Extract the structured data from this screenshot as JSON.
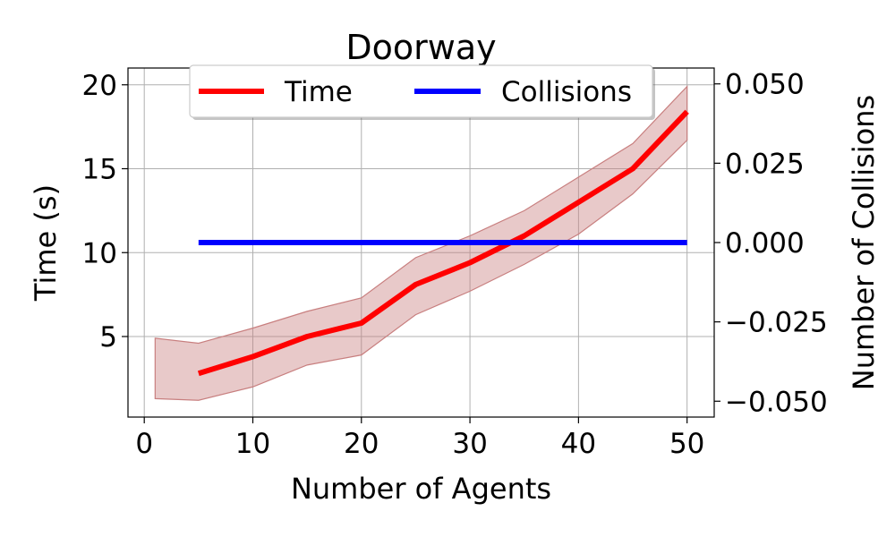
{
  "chart_data": {
    "type": "line",
    "title": "Doorway",
    "xlabel": "Number of Agents",
    "ylabel": "Time (s)",
    "y2label": "Number of Collisions",
    "xlim": [
      -1.5,
      52.5
    ],
    "ylim": [
      0.2,
      21.0
    ],
    "y2lim": [
      -0.055,
      0.055
    ],
    "xticks": [
      0,
      10,
      20,
      30,
      40,
      50
    ],
    "yticks": [
      5,
      10,
      15,
      20
    ],
    "y2ticks": [
      0.05,
      0.025,
      0.0,
      -0.025,
      -0.05
    ],
    "y2tick_labels": [
      "0.050",
      "0.025",
      "0.000",
      "−0.025",
      "−0.050"
    ],
    "grid": true,
    "legend_position": "top-center",
    "series": [
      {
        "name": "Time",
        "axis": "left",
        "color": "#ff0000",
        "x": [
          5,
          10,
          15,
          20,
          25,
          30,
          35,
          40,
          45,
          50
        ],
        "values": [
          2.8,
          3.8,
          5.0,
          5.8,
          8.1,
          9.4,
          11.0,
          13.0,
          15.0,
          18.4
        ]
      },
      {
        "name": "Collisions",
        "axis": "right",
        "color": "#0000ff",
        "x": [
          5,
          10,
          15,
          20,
          25,
          30,
          35,
          40,
          45,
          50
        ],
        "values": [
          0,
          0,
          0,
          0,
          0,
          0,
          0,
          0,
          0,
          0
        ]
      }
    ],
    "band": {
      "series": "Time",
      "color": "#c87f7f",
      "x": [
        1,
        5,
        10,
        15,
        20,
        25,
        30,
        35,
        40,
        45,
        50
      ],
      "upper": [
        4.9,
        4.6,
        5.5,
        6.5,
        7.3,
        9.7,
        11.0,
        12.5,
        14.5,
        16.5,
        19.9
      ],
      "lower": [
        1.3,
        1.2,
        2.0,
        3.3,
        3.9,
        6.3,
        7.7,
        9.3,
        11.1,
        13.5,
        16.7
      ]
    }
  }
}
